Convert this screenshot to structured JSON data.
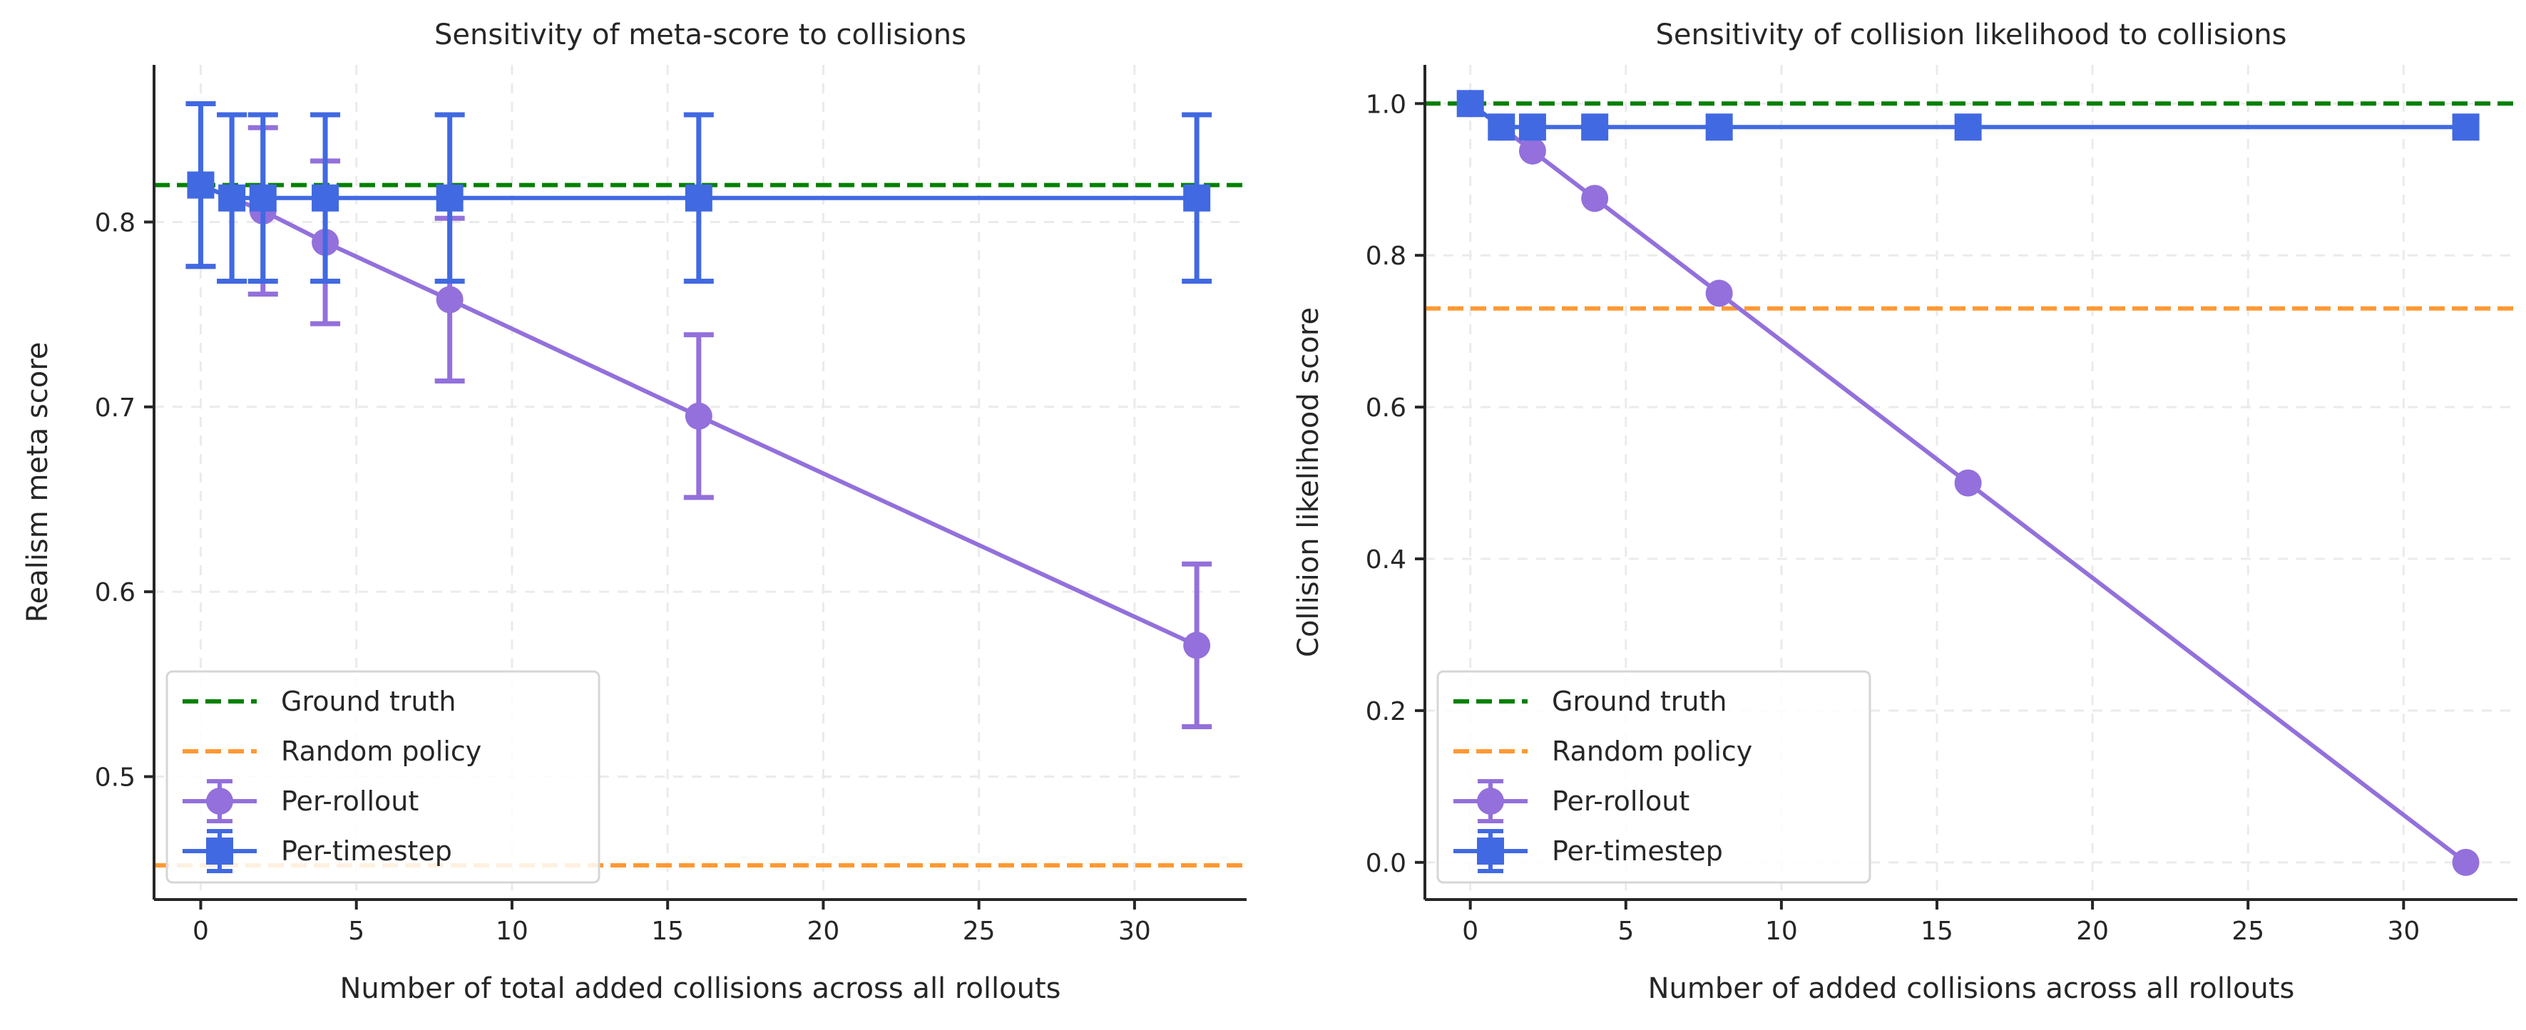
{
  "colors": {
    "per_rollout": "#9370DB",
    "per_timestep": "#4169E1",
    "ground_truth": "#008000",
    "random_policy": "#FF9933"
  },
  "chart_data": [
    {
      "type": "line",
      "title": "Sensitivity of meta-score to collisions",
      "xlabel": "Number of total added collisions across all rollouts",
      "ylabel": "Realism meta score",
      "xlim": [
        -1.5,
        33.6
      ],
      "ylim": [
        0.4335,
        0.885
      ],
      "xticks": [
        0,
        5,
        10,
        15,
        20,
        25,
        30
      ],
      "yticks": [
        0.5,
        0.6,
        0.7,
        0.8
      ],
      "grid": true,
      "legend_placement": "lower-left",
      "hlines": [
        {
          "name": "Ground truth",
          "y": 0.82,
          "color_key": "ground_truth"
        },
        {
          "name": "Random policy",
          "y": 0.452,
          "color_key": "random_policy"
        }
      ],
      "series": [
        {
          "name": "Per-rollout",
          "marker": "circle",
          "color_key": "per_rollout",
          "x": [
            0,
            1,
            2,
            4,
            8,
            16,
            32
          ],
          "y": [
            0.82,
            0.813,
            0.806,
            0.789,
            0.758,
            0.695,
            0.571
          ],
          "err": [
            0.044,
            0.045,
            0.045,
            0.044,
            0.044,
            0.044,
            0.044
          ]
        },
        {
          "name": "Per-timestep",
          "marker": "square",
          "color_key": "per_timestep",
          "x": [
            0,
            1,
            2,
            4,
            8,
            16,
            32
          ],
          "y": [
            0.82,
            0.813,
            0.813,
            0.813,
            0.813,
            0.813,
            0.813
          ],
          "err": [
            0.044,
            0.045,
            0.045,
            0.045,
            0.045,
            0.045,
            0.045
          ]
        }
      ]
    },
    {
      "type": "line",
      "title": "Sensitivity of collision likelihood to collisions",
      "xlabel": "Number of added collisions across all rollouts",
      "ylabel": "Collision likelihood score",
      "xlim": [
        -1.46,
        33.66
      ],
      "ylim": [
        -0.049,
        1.051
      ],
      "xticks": [
        0,
        5,
        10,
        15,
        20,
        25,
        30
      ],
      "yticks": [
        0.0,
        0.2,
        0.4,
        0.6,
        0.8,
        1.0
      ],
      "grid": true,
      "legend_placement": "lower-left",
      "hlines": [
        {
          "name": "Ground truth",
          "y": 1.0,
          "color_key": "ground_truth"
        },
        {
          "name": "Random policy",
          "y": 0.73,
          "color_key": "random_policy"
        }
      ],
      "series": [
        {
          "name": "Per-rollout",
          "marker": "circle",
          "color_key": "per_rollout",
          "x": [
            0,
            1,
            2,
            4,
            8,
            16,
            32
          ],
          "y": [
            1.0,
            0.969,
            0.9375,
            0.875,
            0.75,
            0.5,
            0.0
          ],
          "err": [
            0,
            0,
            0,
            0,
            0,
            0,
            0
          ]
        },
        {
          "name": "Per-timestep",
          "marker": "square",
          "color_key": "per_timestep",
          "x": [
            0,
            1,
            2,
            4,
            8,
            16,
            32
          ],
          "y": [
            1.0,
            0.969,
            0.969,
            0.969,
            0.969,
            0.969,
            0.969
          ],
          "err": [
            0,
            0,
            0,
            0,
            0,
            0,
            0
          ]
        }
      ]
    }
  ]
}
